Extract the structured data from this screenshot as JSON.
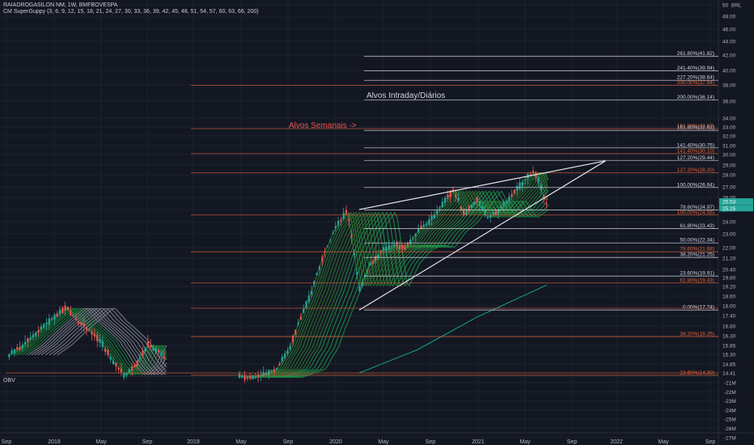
{
  "header": {
    "symbol_line": "RAIADROGASILON NM, 1W, BMFBOVESPA",
    "indicator_line": "CM SuperGuppy (3, 6, 9, 12, 15, 18, 21, 24, 27, 30, 33, 36, 39, 42, 45, 48, 51, 54, 57, 60, 63, 66, 200)"
  },
  "obv_label": "OBV",
  "currency": "BRL",
  "chart_data": {
    "type": "line",
    "price_axis_ticks": [
      "50",
      "48.00",
      "46.00",
      "44.00",
      "42.00",
      "40.00",
      "38.00",
      "36.00",
      "34.00",
      "33.00",
      "32.00",
      "31.00",
      "30.00",
      "29.00",
      "28.00",
      "27.00",
      "26.00",
      "25.00",
      "24.00",
      "23.00",
      "22.00",
      "21.20",
      "20.40",
      "19.80",
      "19.20",
      "18.60",
      "18.00",
      "17.40",
      "16.80",
      "16.30",
      "15.85",
      "15.30",
      "14.85",
      "14.41"
    ],
    "obv_axis_ticks": [
      "-21M",
      "-22M",
      "-23M",
      "-24M",
      "-25M",
      "-26M",
      "-27M"
    ],
    "time_axis_ticks": [
      "Sep",
      "2018",
      "May",
      "Sep",
      "2019",
      "May",
      "Sep",
      "2020",
      "May",
      "Sep",
      "2021",
      "May",
      "Sep",
      "2022",
      "May",
      "Sep"
    ],
    "last_price_badges": [
      {
        "value": "25.53",
        "color": "#26a69a"
      },
      {
        "value": "25.25",
        "color": "#26a69a"
      }
    ],
    "fib_white": [
      {
        "label": "261.80%(41.82)",
        "value": 41.82
      },
      {
        "label": "241.40%(39.94)",
        "value": 39.94
      },
      {
        "label": "227.20%(38.64)",
        "value": 38.64
      },
      {
        "label": "200.00%(36.14)",
        "value": 36.14
      },
      {
        "label": "161.80%(32.62)",
        "value": 32.62
      },
      {
        "label": "141.40%(30.75)",
        "value": 30.75
      },
      {
        "label": "127.20%(29.44)",
        "value": 29.44
      },
      {
        "label": "100.00%(26.94)",
        "value": 26.94
      },
      {
        "label": "78.60%(24.97)",
        "value": 24.97
      },
      {
        "label": "61.80%(23.43)",
        "value": 23.43
      },
      {
        "label": "50.00%(22.34)",
        "value": 22.34
      },
      {
        "label": "38.20%(21.25)",
        "value": 21.25
      },
      {
        "label": "23.60%(19.91)",
        "value": 19.91
      },
      {
        "label": "0.00%(17.74)",
        "value": 17.74
      }
    ],
    "fib_orange": [
      {
        "label": "200.00%(37.94)",
        "value": 37.94
      },
      {
        "label": "161.80%(32.82)",
        "value": 32.82
      },
      {
        "label": "141.40%(30.10)",
        "value": 30.1
      },
      {
        "label": "127.20%(28.20)",
        "value": 28.2
      },
      {
        "label": "100.00%(24.55)",
        "value": 24.55
      },
      {
        "label": "78.60%(21.68)",
        "value": 21.68
      },
      {
        "label": "61.80%(19.43)",
        "value": 19.43
      },
      {
        "label": "38.20%(16.26)",
        "value": 16.26
      },
      {
        "label": "23.60%(14.30)",
        "value": 14.3
      }
    ],
    "annotations": [
      {
        "text": "Alvos Intraday/Diários",
        "color": "#d1d4dc"
      },
      {
        "text": "Alvos Semanais ->",
        "color": "#ef5350"
      }
    ],
    "wedge": {
      "upper": [
        [
          "2020-03",
          25.0
        ],
        [
          "2021-12",
          29.4
        ]
      ],
      "lower": [
        [
          "2020-03",
          17.74
        ],
        [
          "2021-12",
          29.4
        ]
      ],
      "color": "#e0e3eb"
    },
    "colors": {
      "up": "#26a69a",
      "down": "#ef5350",
      "fib_white": "#d1d4dc",
      "fib_orange": "#e0643a",
      "ema200": "#14a38b",
      "guppy_fast": "#2e7d32",
      "background": "#131722",
      "grid": "#1e2230"
    },
    "grid": true
  }
}
